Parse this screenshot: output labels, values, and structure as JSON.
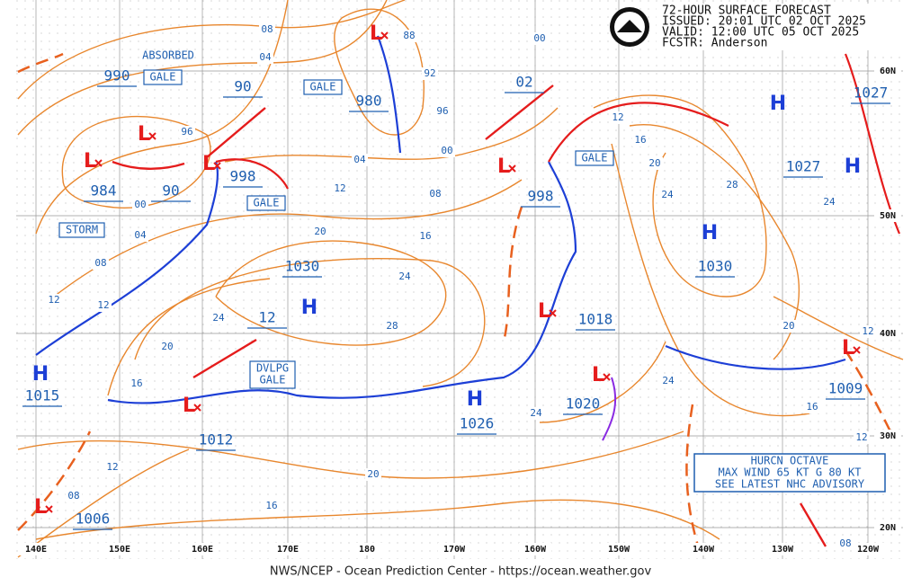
{
  "header": {
    "lines": [
      "72-HOUR SURFACE FORECAST",
      "ISSUED: 20:01 UTC 02 OCT 2025",
      "VALID:  12:00 UTC 05 OCT 2025",
      "FCSTR:  Anderson"
    ]
  },
  "footer": "NWS/NCEP - Ocean Prediction Center - https://ocean.weather.gov",
  "longitudes": [
    "140E",
    "150E",
    "160E",
    "170E",
    "180",
    "170W",
    "160W",
    "150W",
    "140W",
    "130W",
    "120W"
  ],
  "latitudes": [
    "60N",
    "50N",
    "40N",
    "30N",
    "20N"
  ],
  "high_symbols": [
    "H",
    "H",
    "H",
    "H",
    "H",
    "H"
  ],
  "low_symbols": [
    "L",
    "L",
    "L",
    "L",
    "L",
    "L",
    "L",
    "L",
    "L",
    "L"
  ],
  "pressures": [
    "990",
    "90",
    "980",
    "02",
    "1027",
    "984",
    "90",
    "998",
    "998",
    "1027",
    "1030",
    "1030",
    "12",
    "1018",
    "1015",
    "1020",
    "1009",
    "1012",
    "1026",
    "1006"
  ],
  "isobar_labels": [
    "08",
    "04",
    "88",
    "92",
    "96",
    "96",
    "00",
    "12",
    "16",
    "20",
    "24",
    "28",
    "04",
    "00",
    "08",
    "12",
    "00",
    "04",
    "20",
    "16",
    "24",
    "08",
    "12",
    "12",
    "24",
    "28",
    "20",
    "16",
    "24",
    "24",
    "20",
    "12",
    "16",
    "12",
    "24",
    "20",
    "12",
    "08",
    "16",
    "08"
  ],
  "annotations": [
    "ABSORBED"
  ],
  "warnings": [
    "GALE",
    "GALE",
    "GALE",
    "GALE",
    "STORM"
  ],
  "dvlpg": [
    "DVLPG",
    "GALE"
  ],
  "hurricane": [
    "HURCN OCTAVE",
    "MAX WIND 65 KT G 80 KT",
    "SEE LATEST NHC ADVISORY"
  ]
}
